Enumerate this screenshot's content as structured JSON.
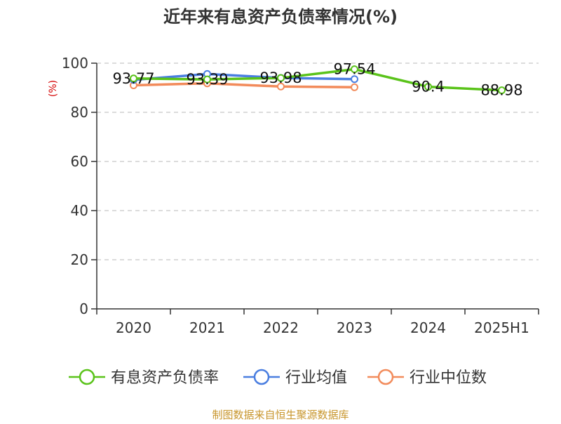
{
  "colors": {
    "title": "#333333",
    "ylabel": "#d40000",
    "axis": "#333333",
    "grid": "#c8c8c8",
    "source": "#c8962d",
    "series": [
      "#5ac31a",
      "#4a7ee0",
      "#f28b5b"
    ]
  },
  "chart_data": {
    "type": "line",
    "title": "近年来有息资产负债率情况(%)",
    "ylabel": "(%)",
    "xlabel": "",
    "ylim": [
      0,
      100
    ],
    "yticks": [
      0,
      20,
      40,
      60,
      80,
      100
    ],
    "grid": true,
    "legend_position": "bottom",
    "categories": [
      "2020",
      "2021",
      "2022",
      "2023",
      "2024",
      "2025H1"
    ],
    "series": [
      {
        "name": "有息资产负债率",
        "values": [
          93.77,
          93.39,
          93.98,
          97.54,
          90.4,
          88.98
        ],
        "labels": [
          "93.77",
          "93.39",
          "93.98",
          "97.54",
          "90.4",
          "88.98"
        ]
      },
      {
        "name": "行业均值",
        "values": [
          93.2,
          95.6,
          94.0,
          93.5,
          null,
          null
        ]
      },
      {
        "name": "行业中位数",
        "values": [
          91.0,
          91.8,
          90.5,
          90.2,
          null,
          null
        ]
      }
    ]
  },
  "footer": {
    "source": "制图数据来自恒生聚源数据库"
  }
}
